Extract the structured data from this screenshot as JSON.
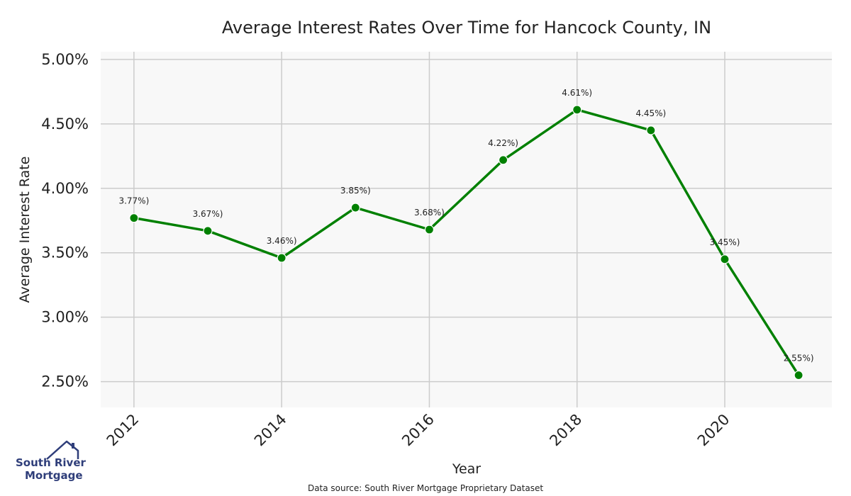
{
  "chart_data": {
    "type": "line",
    "title": "Average Interest Rates Over Time for Hancock County, IN",
    "xlabel": "Year",
    "ylabel": "Average Interest Rate",
    "x": [
      2012,
      2013,
      2014,
      2015,
      2016,
      2017,
      2018,
      2019,
      2020,
      2021
    ],
    "series": [
      {
        "values": [
          3.77,
          3.67,
          3.46,
          3.85,
          3.68,
          4.22,
          4.61,
          4.45,
          3.45,
          2.55
        ],
        "point_labels": [
          "3.77%)",
          "3.67%)",
          "3.46%)",
          "3.85%)",
          "3.68%)",
          "4.22%)",
          "4.61%)",
          "4.45%)",
          "3.45%)",
          "2.55%)"
        ],
        "color": "#008000"
      }
    ],
    "xticks": [
      2012,
      2014,
      2016,
      2018,
      2020
    ],
    "xtick_labels": [
      "2012",
      "2014",
      "2016",
      "2018",
      "2020"
    ],
    "xlim": [
      2011.55,
      2021.45
    ],
    "yticks": [
      2.5,
      3.0,
      3.5,
      4.0,
      4.5,
      5.0
    ],
    "ytick_labels": [
      "2.50%",
      "3.00%",
      "3.50%",
      "4.00%",
      "4.50%",
      "5.00%"
    ],
    "ylim": [
      2.3,
      5.06
    ],
    "grid": true,
    "background": "#f8f8f8",
    "grid_color": "#cccccc"
  },
  "footnote": "Data source: South River Mortgage Proprietary Dataset",
  "logo": {
    "line1": "South River",
    "line2": "Mortgage",
    "color": "#2f3e7a"
  }
}
